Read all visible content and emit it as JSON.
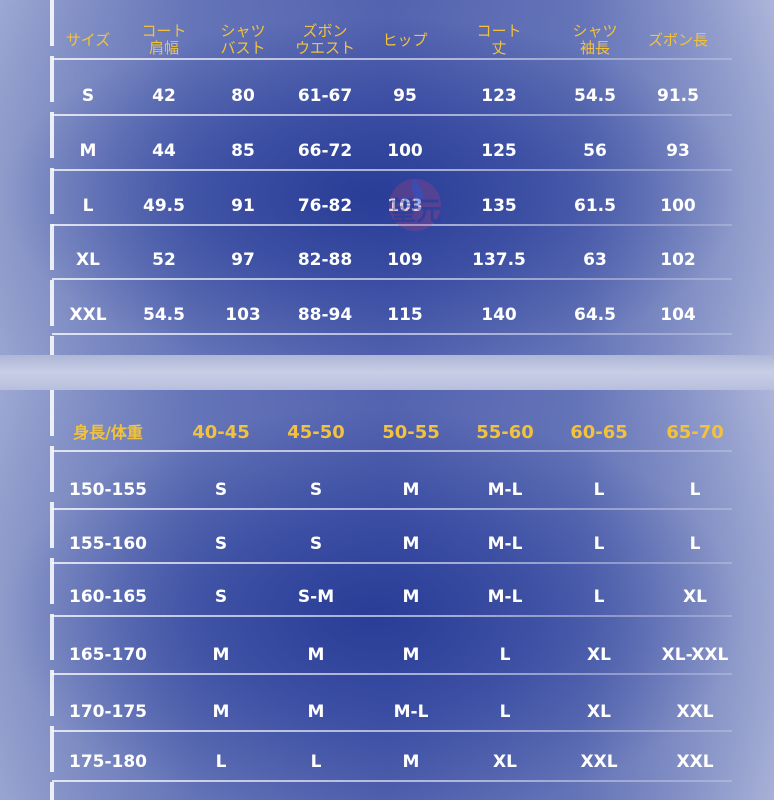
{
  "top_table": {
    "headers": [
      [
        "サイズ"
      ],
      [
        "コート",
        "肩幅"
      ],
      [
        "シャツ",
        "バスト"
      ],
      [
        "ズボン",
        "ウエスト"
      ],
      [
        "ヒップ"
      ],
      [
        "コート",
        "丈"
      ],
      [
        "シャツ",
        "袖長"
      ],
      [
        "ズボン長"
      ]
    ],
    "rows": [
      [
        "S",
        "42",
        "80",
        "61-67",
        "95",
        "123",
        "54.5",
        "91.5"
      ],
      [
        "M",
        "44",
        "85",
        "66-72",
        "100",
        "125",
        "56",
        "93"
      ],
      [
        "L",
        "49.5",
        "91",
        "76-82",
        "103",
        "135",
        "61.5",
        "100"
      ],
      [
        "XL",
        "52",
        "97",
        "82-88",
        "109",
        "137.5",
        "63",
        "102"
      ],
      [
        "XXL",
        "54.5",
        "103",
        "88-94",
        "115",
        "140",
        "64.5",
        "104"
      ]
    ]
  },
  "bottom_table": {
    "headers": [
      "身長/体重",
      "40-45",
      "45-50",
      "50-55",
      "55-60",
      "60-65",
      "65-70"
    ],
    "rows": [
      [
        "150-155",
        "S",
        "S",
        "M",
        "M-L",
        "L",
        "L"
      ],
      [
        "155-160",
        "S",
        "S",
        "M",
        "M-L",
        "L",
        "L"
      ],
      [
        "160-165",
        "S",
        "S-M",
        "M",
        "M-L",
        "L",
        "XL"
      ],
      [
        "165-170",
        "M",
        "M",
        "M",
        "L",
        "XL",
        "XL-XXL"
      ],
      [
        "170-175",
        "M",
        "M",
        "M-L",
        "L",
        "XL",
        "XXL"
      ],
      [
        "175-180",
        "L",
        "L",
        "M",
        "XL",
        "XXL",
        "XXL"
      ]
    ]
  },
  "watermark": {
    "text": "五望元",
    "icon": "flame-logo-icon"
  },
  "colors": {
    "header_text": "#f2c23d",
    "body_text": "#ffffff",
    "panel_center": "#3a4aa0",
    "panel_edge": "#c9d0e6"
  }
}
